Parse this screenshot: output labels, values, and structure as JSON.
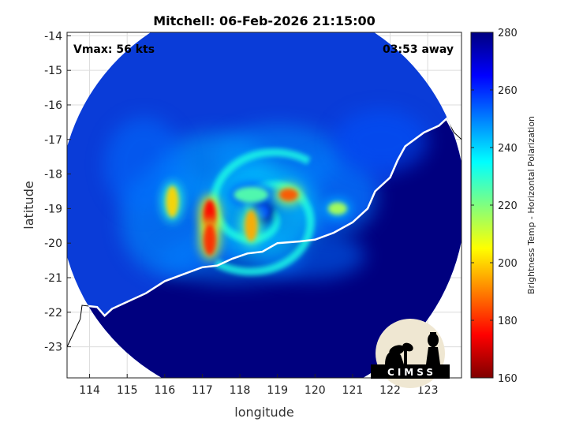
{
  "chart_data": {
    "type": "heatmap",
    "title": "Mitchell: 06-Feb-2026 21:15:00",
    "xlabel": "longitude",
    "ylabel": "latitude",
    "xlim": [
      113.4,
      123.9
    ],
    "ylim": [
      -23.9,
      -13.9
    ],
    "x_ticks": [
      114,
      115,
      116,
      117,
      118,
      119,
      120,
      121,
      122,
      123
    ],
    "y_ticks": [
      -14,
      -15,
      -16,
      -17,
      -18,
      -19,
      -20,
      -21,
      -22,
      -23
    ],
    "grid": true,
    "annotations": {
      "vmax": "Vmax: 56 kts",
      "time_away": "03:53 away"
    },
    "colorbar": {
      "label": "Brightness Temp - Horizontal Polarization",
      "range": [
        160,
        280
      ],
      "ticks": [
        280,
        260,
        240,
        220,
        200,
        180,
        160
      ],
      "colormap": "jet"
    },
    "storm_center": {
      "lon": 118.6,
      "lat": -19.1
    },
    "swath": {
      "center_lon": 118.6,
      "center_lat": -18.8,
      "radius_deg": 5.4
    },
    "coastline": [
      [
        113.4,
        -23.0
      ],
      [
        113.75,
        -22.2
      ],
      [
        113.8,
        -21.8
      ],
      [
        114.2,
        -21.85
      ],
      [
        114.4,
        -22.1
      ],
      [
        114.6,
        -21.9
      ],
      [
        115.0,
        -21.7
      ],
      [
        115.5,
        -21.45
      ],
      [
        116.0,
        -21.1
      ],
      [
        116.5,
        -20.9
      ],
      [
        117.0,
        -20.7
      ],
      [
        117.4,
        -20.65
      ],
      [
        117.8,
        -20.45
      ],
      [
        118.2,
        -20.3
      ],
      [
        118.6,
        -20.25
      ],
      [
        119.0,
        -20.0
      ],
      [
        119.6,
        -19.95
      ],
      [
        120.0,
        -19.9
      ],
      [
        120.5,
        -19.7
      ],
      [
        121.0,
        -19.4
      ],
      [
        121.4,
        -19.0
      ],
      [
        121.6,
        -18.5
      ],
      [
        122.0,
        -18.1
      ],
      [
        122.2,
        -17.6
      ],
      [
        122.4,
        -17.2
      ],
      [
        122.9,
        -16.8
      ],
      [
        123.3,
        -16.6
      ],
      [
        123.5,
        -16.4
      ],
      [
        123.7,
        -16.8
      ],
      [
        123.9,
        -17.0
      ]
    ],
    "features": [
      {
        "type": "eye",
        "lon": 118.6,
        "lat": -19.1,
        "value": 255
      },
      {
        "type": "eyewall",
        "lon": 118.3,
        "lat": -18.6,
        "value": 225
      },
      {
        "type": "rainband",
        "lon": 117.2,
        "lat": -19.2,
        "value": 175
      },
      {
        "type": "rainband",
        "lon": 117.2,
        "lat": -19.9,
        "value": 180
      },
      {
        "type": "rainband",
        "lon": 119.3,
        "lat": -18.6,
        "value": 185
      },
      {
        "type": "rainband",
        "lon": 118.3,
        "lat": -19.5,
        "value": 195
      },
      {
        "type": "rainband",
        "lon": 116.2,
        "lat": -18.8,
        "value": 200
      },
      {
        "type": "rainband",
        "lon": 120.6,
        "lat": -19.0,
        "value": 215
      }
    ]
  },
  "logo": {
    "text": "CIMSS"
  },
  "colors": {
    "land": "#00007f",
    "ocean": "#0a3cd8",
    "coast": "#ffffff"
  }
}
